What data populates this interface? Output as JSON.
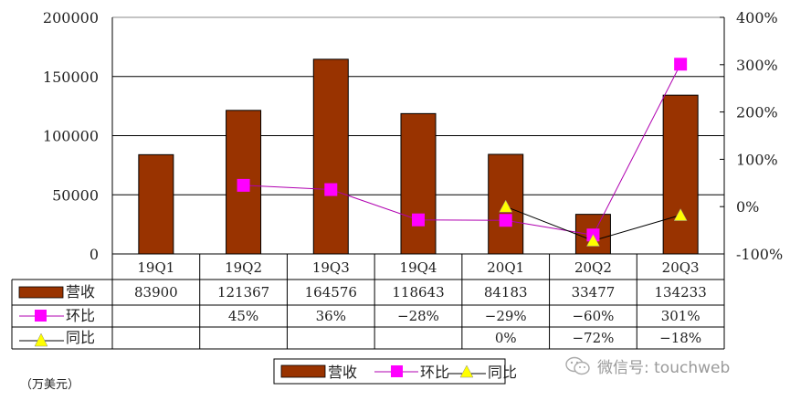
{
  "chart_data": {
    "type": "bar",
    "title": "",
    "categories": [
      "19Q1",
      "19Q2",
      "19Q3",
      "19Q4",
      "20Q1",
      "20Q2",
      "20Q3"
    ],
    "series": [
      {
        "name": "营收",
        "type": "bar",
        "axis": "left",
        "color": "#993300",
        "values": [
          83900,
          121367,
          164576,
          118643,
          84183,
          33477,
          134233
        ],
        "labels": [
          "83900",
          "121367",
          "164576",
          "118643",
          "84183",
          "33477",
          "134233"
        ]
      },
      {
        "name": "环比",
        "type": "line",
        "axis": "right",
        "color": "#ff00ff",
        "marker": "square",
        "values": [
          null,
          45,
          36,
          -28,
          -29,
          -60,
          301
        ],
        "labels": [
          "",
          "45%",
          "36%",
          "-28%",
          "-29%",
          "-60%",
          "301%"
        ]
      },
      {
        "name": "同比",
        "type": "line",
        "axis": "right",
        "color": "#000000",
        "marker": "triangle",
        "marker_color": "#ffff00",
        "values": [
          null,
          null,
          null,
          null,
          0,
          -72,
          -18
        ],
        "labels": [
          "",
          "",
          "",
          "",
          "0%",
          "-72%",
          "-18%"
        ]
      }
    ],
    "left_axis": {
      "ylim": [
        0,
        200000
      ],
      "ticks": [
        "200000",
        "150000",
        "100000",
        "50000",
        "0"
      ]
    },
    "right_axis": {
      "ylim": [
        -100,
        400
      ],
      "ticks": [
        "400%",
        "300%",
        "200%",
        "100%",
        "0%",
        "-100%"
      ]
    },
    "grid": true,
    "legend": {
      "position": "bottom",
      "entries": [
        "营收",
        "环比",
        "同比"
      ]
    },
    "data_table": true
  },
  "unit_label": "（万美元）",
  "watermark": "微信号: touchweb"
}
